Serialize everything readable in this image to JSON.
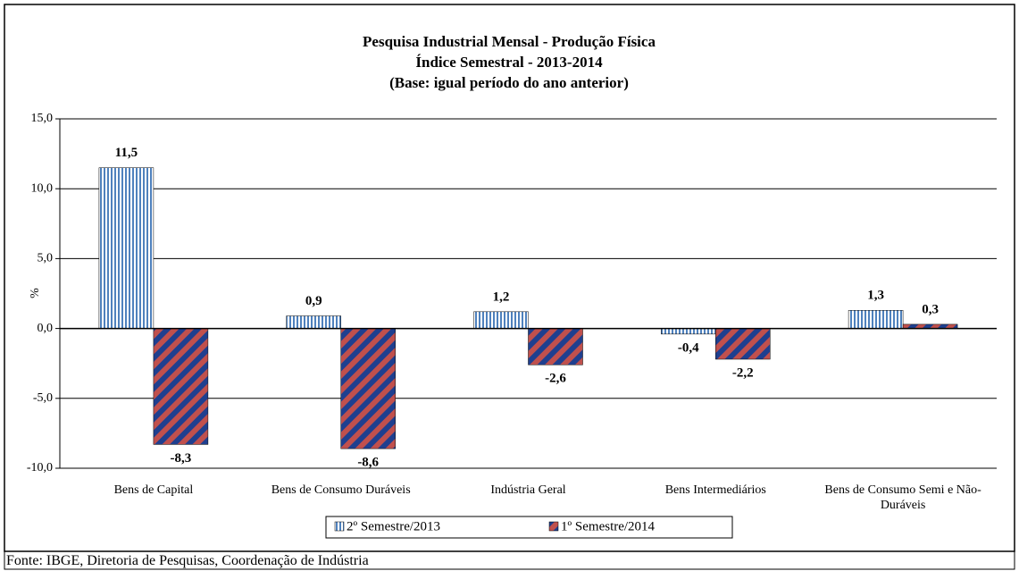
{
  "chart_data": {
    "type": "bar",
    "title": [
      "Pesquisa Industrial Mensal - Produção Física",
      "Índice Semestral - 2013-2014",
      "(Base: igual período do ano anterior)"
    ],
    "y_label": "%",
    "categories": [
      "Bens de Capital",
      "Bens de Consumo Duráveis",
      "Indústria Geral",
      "Bens Intermediários",
      "Bens de Consumo Semi e Não-Duráveis"
    ],
    "series": [
      {
        "name": "2º Semestre/2013",
        "color": "#4f81bd",
        "values": [
          11.5,
          0.9,
          1.2,
          -0.4,
          1.3
        ],
        "value_labels": [
          "11,5",
          "0,9",
          "1,2",
          "-0,4",
          "1,3"
        ]
      },
      {
        "name": "1º Semestre/2014",
        "color": "#c0504d",
        "values": [
          -8.3,
          -8.6,
          -2.6,
          -2.2,
          0.3
        ],
        "value_labels": [
          "-8,3",
          "-8,6",
          "-2,6",
          "-2,2",
          "0,3"
        ]
      }
    ],
    "ylim": [
      -10,
      15
    ],
    "yticks": [
      {
        "value": -10,
        "label": "-10,0"
      },
      {
        "value": -5,
        "label": "-5,0"
      },
      {
        "value": 0,
        "label": "0,0"
      },
      {
        "value": 5,
        "label": "5,0"
      },
      {
        "value": 10,
        "label": "10,0"
      },
      {
        "value": 15,
        "label": "15,0"
      }
    ],
    "grid": true,
    "source": "Fonte: IBGE, Diretoria de Pesquisas, Coordenação de Indústria"
  }
}
